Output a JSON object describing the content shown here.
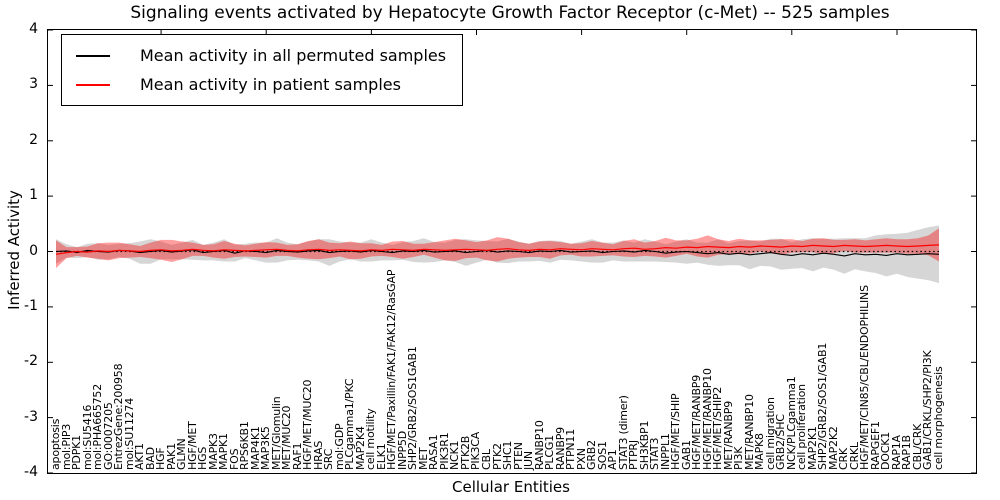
{
  "title": "Signaling events activated by Hepatocyte Growth Factor Receptor (c-Met) -- 525 samples",
  "legend": {
    "items": [
      {
        "label": "Mean activity in all permuted samples",
        "color": "#000000"
      },
      {
        "label": "Mean activity in patient samples",
        "color": "#ff0000"
      }
    ]
  },
  "axes": {
    "ylabel": "Inferred Activity",
    "xlabel": "Cellular Entities",
    "yticks": [
      "4",
      "3",
      "2",
      "1",
      "0",
      "-1",
      "-2",
      "-3",
      "-4"
    ]
  },
  "chart_data": {
    "type": "line",
    "title": "Signaling events activated by Hepatocyte Growth Factor Receptor (c-Met) -- 525 samples",
    "xlabel": "Cellular Entities",
    "ylabel": "Inferred Activity",
    "ylim": [
      -4,
      4
    ],
    "grid": false,
    "legend_position": "upper left",
    "zero_line": {
      "style": "dotted",
      "color": "#000000",
      "y": 0
    },
    "categories": [
      "apoptosis",
      "mol:PIP3",
      "PDPK1",
      "mol:SU5416",
      "mol:PHA665752",
      "GO:0007205",
      "EntrezGene:200958",
      "mol:SU11274",
      "AKT1",
      "BAD",
      "HGF",
      "PAK1",
      "GLMN",
      "HGF/MET",
      "HGS",
      "MAPK3",
      "MAPK1",
      "FOS",
      "RPS6KB1",
      "MAP4K1",
      "MAP3K5",
      "MET/Glomulin",
      "MET/MUC20",
      "RAF1",
      "HGF/MET/MUC20",
      "HRAS",
      "SRC",
      "mol:GDP",
      "PLCgamma1/PKC",
      "MAP2K4",
      "cell motility",
      "ELK1",
      "HGF/MET/Paxillin/FAK1/FAK12/RasGAP",
      "INPP5D",
      "SHP2/GRB2/SOS1GAB1",
      "MET",
      "RASA1",
      "PIK3R1",
      "NCK1",
      "PTK2B",
      "PIK3CA",
      "CBL",
      "PTK2",
      "SHC1",
      "PTEN",
      "JUN",
      "RANBP10",
      "PLCG1",
      "RANBP9",
      "PTPN11",
      "PXN",
      "GRB2",
      "SOS1",
      "AP1",
      "STAT3 (dimer)",
      "PTPRJ",
      "SH3KBP1",
      "STAT3",
      "INPPL1",
      "HGF/MET/SHIP",
      "GAB1",
      "HGF/MET/RANBP9",
      "HGF/MET/RANBP10",
      "HGF/MET/SHIP2",
      "MET/RANBP9",
      "PI3K",
      "MET/RANBP10",
      "MAPK8",
      "cell migration",
      "GRB2/SHC",
      "NCK/PLCgamma1",
      "cell proliferation",
      "MAP2K1",
      "SHP2/GRB2/SOS1/GAB1",
      "MAP2K2",
      "CRK",
      "CRKL",
      "HGF/MET/CIN85/CBL/ENDOPHILINS",
      "RAPGEF1",
      "DOCK1",
      "RAP1A",
      "RAP1B",
      "CBL/CRK",
      "GAB1/CRKL/SHP2/PI3K",
      "cell morphogenesis"
    ],
    "series": [
      {
        "name": "Mean activity in all permuted samples",
        "color": "#000000",
        "band_color": "#d6d6d6",
        "values": [
          0.0,
          0.01,
          -0.02,
          0.02,
          0.0,
          -0.01,
          0.02,
          0.01,
          -0.02,
          0.0,
          0.02,
          -0.01,
          0.01,
          0.03,
          -0.02,
          0.0,
          0.02,
          -0.03,
          0.01,
          0.0,
          -0.02,
          0.02,
          0.0,
          -0.01,
          0.01,
          0.02,
          -0.02,
          0.0,
          0.01,
          -0.01,
          0.02,
          0.0,
          -0.02,
          0.01,
          0.0,
          0.02,
          -0.01,
          0.0,
          0.01,
          -0.02,
          0.0,
          0.02,
          -0.01,
          0.01,
          0.0,
          -0.02,
          0.01,
          0.0,
          0.02,
          -0.01,
          0.0,
          0.01,
          -0.02,
          0.0,
          0.01,
          -0.01,
          0.02,
          0.0,
          -0.03,
          -0.01,
          0.0,
          -0.02,
          -0.04,
          -0.02,
          -0.05,
          -0.03,
          -0.06,
          -0.04,
          -0.02,
          -0.05,
          -0.07,
          -0.04,
          -0.06,
          -0.03,
          -0.05,
          -0.08,
          -0.04,
          -0.06,
          -0.05,
          -0.07,
          -0.04,
          -0.06,
          -0.05,
          -0.04,
          -0.05
        ],
        "band_halfwidth": [
          0.22,
          0.12,
          0.1,
          0.12,
          0.15,
          0.13,
          0.12,
          0.14,
          0.2,
          0.22,
          0.16,
          0.13,
          0.15,
          0.18,
          0.14,
          0.16,
          0.2,
          0.15,
          0.13,
          0.16,
          0.18,
          0.22,
          0.16,
          0.14,
          0.17,
          0.2,
          0.24,
          0.18,
          0.15,
          0.17,
          0.2,
          0.16,
          0.14,
          0.16,
          0.19,
          0.22,
          0.18,
          0.16,
          0.2,
          0.24,
          0.2,
          0.17,
          0.19,
          0.22,
          0.18,
          0.16,
          0.18,
          0.2,
          0.17,
          0.15,
          0.18,
          0.21,
          0.18,
          0.16,
          0.19,
          0.17,
          0.2,
          0.18,
          0.16,
          0.19,
          0.22,
          0.18,
          0.2,
          0.24,
          0.2,
          0.22,
          0.26,
          0.22,
          0.25,
          0.28,
          0.24,
          0.26,
          0.3,
          0.26,
          0.28,
          0.32,
          0.28,
          0.3,
          0.34,
          0.38,
          0.36,
          0.4,
          0.44,
          0.48,
          0.52
        ]
      },
      {
        "name": "Mean activity in patient samples",
        "color": "#ff0000",
        "band_color": "#f09c9c",
        "values": [
          -0.05,
          -0.02,
          0.0,
          -0.01,
          0.01,
          0.0,
          0.02,
          0.01,
          0.0,
          0.02,
          0.03,
          0.01,
          0.02,
          0.04,
          0.02,
          0.01,
          0.03,
          0.02,
          0.01,
          0.02,
          0.03,
          0.04,
          0.02,
          0.01,
          0.03,
          0.04,
          0.02,
          0.03,
          0.02,
          0.01,
          0.03,
          0.02,
          0.04,
          0.03,
          0.02,
          0.04,
          0.03,
          0.02,
          0.03,
          0.04,
          0.03,
          0.02,
          0.04,
          0.05,
          0.03,
          0.02,
          0.04,
          0.03,
          0.05,
          0.04,
          0.03,
          0.05,
          0.04,
          0.03,
          0.05,
          0.06,
          0.04,
          0.05,
          0.07,
          0.06,
          0.08,
          0.07,
          0.09,
          0.08,
          0.07,
          0.09,
          0.08,
          0.1,
          0.09,
          0.08,
          0.1,
          0.09,
          0.11,
          0.1,
          0.09,
          0.11,
          0.1,
          0.09,
          0.1,
          0.11,
          0.1,
          0.09,
          0.1,
          0.11,
          0.12
        ],
        "band_halfwidth": [
          0.25,
          0.1,
          0.08,
          0.1,
          0.14,
          0.16,
          0.14,
          0.12,
          0.1,
          0.14,
          0.18,
          0.2,
          0.16,
          0.12,
          0.1,
          0.12,
          0.16,
          0.12,
          0.1,
          0.12,
          0.14,
          0.12,
          0.1,
          0.12,
          0.16,
          0.18,
          0.14,
          0.12,
          0.16,
          0.14,
          0.12,
          0.1,
          0.14,
          0.16,
          0.12,
          0.1,
          0.14,
          0.18,
          0.2,
          0.16,
          0.14,
          0.18,
          0.22,
          0.18,
          0.14,
          0.12,
          0.14,
          0.16,
          0.12,
          0.1,
          0.12,
          0.14,
          0.12,
          0.1,
          0.14,
          0.16,
          0.12,
          0.14,
          0.18,
          0.14,
          0.12,
          0.16,
          0.2,
          0.14,
          0.12,
          0.14,
          0.12,
          0.1,
          0.12,
          0.14,
          0.12,
          0.1,
          0.12,
          0.14,
          0.12,
          0.1,
          0.12,
          0.11,
          0.12,
          0.13,
          0.12,
          0.13,
          0.14,
          0.18,
          0.3
        ]
      }
    ]
  }
}
